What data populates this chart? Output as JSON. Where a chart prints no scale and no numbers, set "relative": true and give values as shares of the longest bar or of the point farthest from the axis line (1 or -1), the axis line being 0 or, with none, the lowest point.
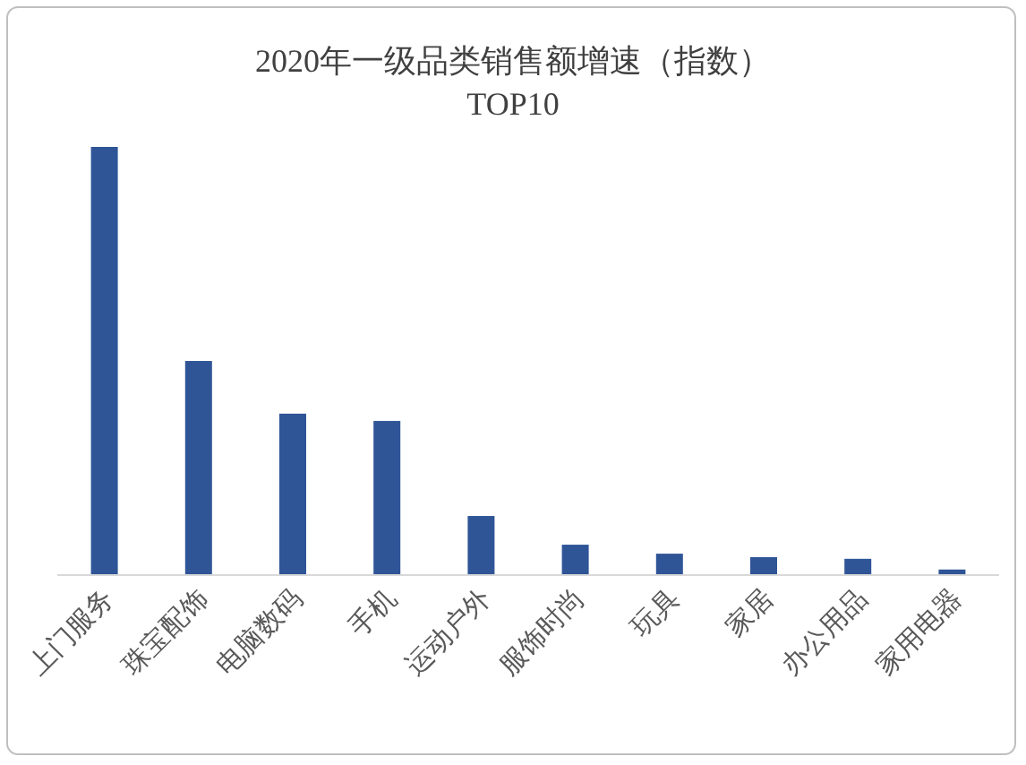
{
  "chart_data": {
    "type": "bar",
    "title": "2020年一级品类销售额增速（指数）",
    "subtitle": "TOP10",
    "categories": [
      "上门服务",
      "珠宝配饰",
      "电脑数码",
      "手机",
      "运动户外",
      "服饰时尚",
      "玩具",
      "家居",
      "办公用品",
      "家用电器"
    ],
    "values": [
      1,
      0.5,
      0.377,
      0.36,
      0.138,
      0.071,
      0.05,
      0.042,
      0.038,
      0.013
    ],
    "color": "#2f5597",
    "relative": true
  }
}
